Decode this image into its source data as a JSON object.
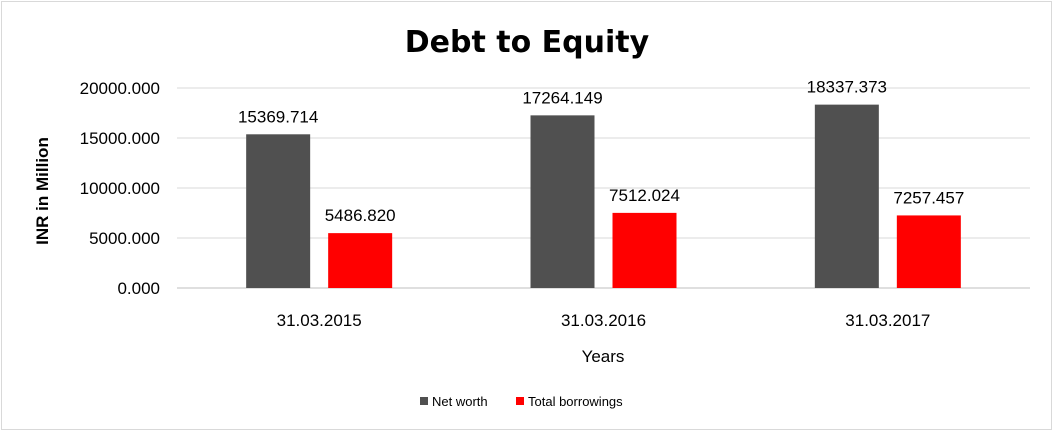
{
  "chart_data": {
    "type": "bar",
    "title": "Debt to Equity",
    "xlabel": "Years",
    "ylabel": "INR in Million",
    "categories": [
      "31.03.2015",
      "31.03.2016",
      "31.03.2017"
    ],
    "series": [
      {
        "name": "Net worth",
        "color": "#505050",
        "values": [
          15369.714,
          17264.149,
          18337.373
        ],
        "labels": [
          "15369.714",
          "17264.149",
          "18337.373"
        ]
      },
      {
        "name": "Total borrowings",
        "color": "#ff0000",
        "values": [
          5486.82,
          7512.024,
          7257.457
        ],
        "labels": [
          "5486.820",
          "7512.024",
          "7257.457"
        ]
      }
    ],
    "ylim": [
      0,
      20000
    ],
    "yticks": [
      0,
      5000,
      10000,
      15000,
      20000
    ],
    "ytick_labels": [
      "0.000",
      "5000.000",
      "10000.000",
      "15000.000",
      "20000.000"
    ],
    "grid": true,
    "legend": "bottom"
  }
}
